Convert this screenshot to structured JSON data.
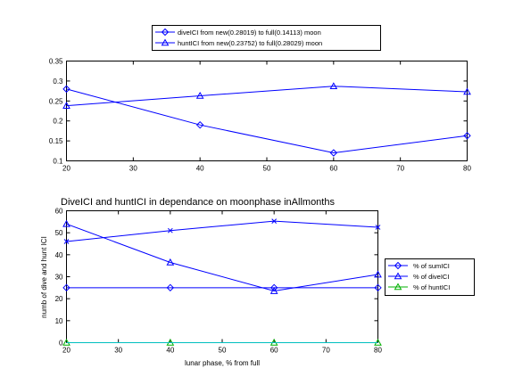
{
  "chart_data": [
    {
      "type": "line",
      "title": "",
      "xlabel": "",
      "ylabel": "",
      "xlim": [
        20,
        80
      ],
      "ylim": [
        0.1,
        0.35
      ],
      "xticks": [
        20,
        30,
        40,
        50,
        60,
        70,
        80
      ],
      "yticks": [
        0.1,
        0.15,
        0.2,
        0.25,
        0.3,
        0.35
      ],
      "ytick_labels": [
        "0.1",
        "0.15",
        "0.2",
        "0.25",
        "0.3",
        "0.35"
      ],
      "grid": false,
      "legend_placement": "top-center-outside",
      "series": [
        {
          "name": "diveICI from new(0.28019) to full(0.14113) moon",
          "color": "#0000ff",
          "marker": "diamond",
          "x": [
            20,
            40,
            60,
            80
          ],
          "y": [
            0.28,
            0.19,
            0.12,
            0.163
          ]
        },
        {
          "name": "huntICI from new(0.23752) to full(0.28029) moon",
          "color": "#0000ff",
          "marker": "triangle",
          "x": [
            20,
            40,
            60,
            80
          ],
          "y": [
            0.238,
            0.263,
            0.287,
            0.273
          ]
        }
      ]
    },
    {
      "type": "line",
      "title": "DiveICI and huntICI in dependance on moonphase inAllmonths",
      "xlabel": "lunar phase, % from full",
      "ylabel": "numb of dive and hunt ICI",
      "xlim": [
        20,
        80
      ],
      "ylim": [
        0,
        60
      ],
      "xticks": [
        20,
        30,
        40,
        50,
        60,
        70,
        80
      ],
      "yticks": [
        0,
        10,
        20,
        30,
        40,
        50,
        60
      ],
      "ytick_labels": [
        "0",
        "10",
        "20",
        "30",
        "40",
        "50",
        "60"
      ],
      "grid": false,
      "legend_placement": "right-outside",
      "series": [
        {
          "name": "% of sumICI",
          "color": "#0000ff",
          "marker": "diamond",
          "x": [
            20,
            40,
            60,
            80
          ],
          "y": [
            25,
            25,
            25,
            25
          ]
        },
        {
          "name": "% of diveICI",
          "color": "#0000ff",
          "marker": "triangle",
          "x": [
            20,
            40,
            60,
            80
          ],
          "y": [
            54,
            36.5,
            23.5,
            31
          ]
        },
        {
          "name": "% of huntICI",
          "color": "#00b000",
          "marker": "triangle",
          "x": [
            20,
            40,
            60,
            80
          ],
          "y": [
            0,
            0,
            0,
            0
          ]
        },
        {
          "name": "",
          "color": "#0000ff",
          "marker": "x",
          "x": [
            20,
            40,
            60,
            80
          ],
          "y": [
            46,
            51,
            55.3,
            52.5
          ]
        },
        {
          "name": "",
          "color": "#00bfbf",
          "marker": "none",
          "x": [
            20,
            40,
            60,
            80
          ],
          "y": [
            0,
            0,
            0,
            0
          ]
        }
      ]
    }
  ]
}
